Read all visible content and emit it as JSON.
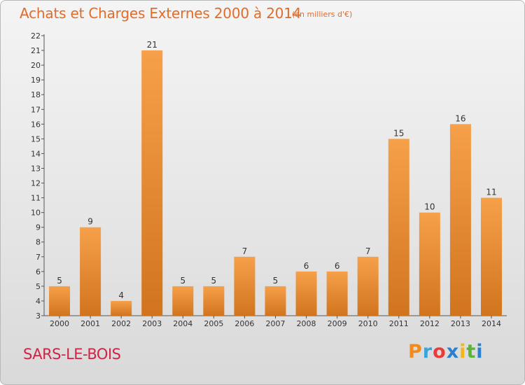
{
  "chart_data": {
    "type": "bar",
    "title": "Achats et Charges Externes 2000 à 2014",
    "unit_note": "(en milliers d'€)",
    "categories": [
      "2000",
      "2001",
      "2002",
      "2003",
      "2004",
      "2005",
      "2006",
      "2007",
      "2008",
      "2009",
      "2010",
      "2011",
      "2012",
      "2013",
      "2014"
    ],
    "values": [
      5,
      9,
      4,
      21,
      5,
      5,
      7,
      5,
      6,
      6,
      7,
      15,
      10,
      16,
      11
    ],
    "ylim": [
      3,
      22
    ],
    "yticks": [
      3,
      4,
      5,
      6,
      7,
      8,
      9,
      10,
      11,
      12,
      13,
      14,
      15,
      16,
      17,
      18,
      19,
      20,
      21,
      22
    ],
    "grid": false,
    "bar_color_light": "#f6a04a",
    "bar_color_dark": "#d2741e"
  },
  "footer": {
    "commune": "SARS-LE-BOIS",
    "logo_letters": [
      {
        "ch": "P",
        "color": "#f28b1c"
      },
      {
        "ch": "r",
        "color": "#3aa4db"
      },
      {
        "ch": "o",
        "color": "#e63c3c"
      },
      {
        "ch": "x",
        "color": "#2a7fcf"
      },
      {
        "ch": "i",
        "color": "#f2b51c"
      },
      {
        "ch": "t",
        "color": "#5bb534"
      },
      {
        "ch": "i",
        "color": "#2a7fcf"
      }
    ]
  }
}
